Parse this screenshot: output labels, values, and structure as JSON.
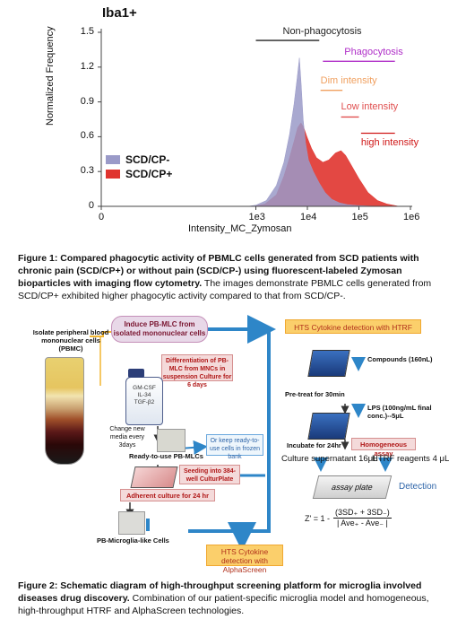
{
  "figure1": {
    "marker": "Iba1+",
    "chart_data": {
      "type": "area",
      "xlabel": "Intensity_MC_Zymosan",
      "ylabel": "Normalized Frequency",
      "x_scale": "log",
      "xlim": [
        1,
        1000000
      ],
      "ylim": [
        0,
        1.5
      ],
      "x_ticks": [
        "0",
        "1e3",
        "1e4",
        "1e5",
        "1e6"
      ],
      "y_ticks": [
        "0",
        "0.3",
        "0.6",
        "0.9",
        "1.2",
        "1.5"
      ],
      "legend_position": "left",
      "series": [
        {
          "name": "SCD/CP-",
          "color": "#9a9ac8",
          "x": [
            700,
            1000,
            1600,
            2500,
            3500,
            4500,
            5500,
            6300,
            7000,
            7600,
            8300,
            9200,
            10500,
            13000,
            17000,
            22000,
            30000,
            42000,
            60000,
            90000,
            140000,
            250000
          ],
          "y": [
            0.0,
            0.01,
            0.05,
            0.18,
            0.38,
            0.62,
            0.88,
            1.1,
            1.28,
            1.05,
            0.75,
            0.55,
            0.4,
            0.3,
            0.2,
            0.12,
            0.06,
            0.03,
            0.015,
            0.008,
            0.004,
            0.0
          ]
        },
        {
          "name": "SCD/CP+",
          "color": "#e0342f",
          "x": [
            900,
            1500,
            2500,
            3500,
            4500,
            5500,
            6500,
            7500,
            8500,
            9800,
            12000,
            15000,
            20000,
            26000,
            35000,
            45000,
            55000,
            70000,
            100000,
            150000,
            230000,
            350000,
            600000
          ],
          "y": [
            0.0,
            0.02,
            0.1,
            0.26,
            0.42,
            0.56,
            0.68,
            0.72,
            0.68,
            0.6,
            0.5,
            0.42,
            0.38,
            0.4,
            0.46,
            0.48,
            0.44,
            0.36,
            0.24,
            0.12,
            0.05,
            0.02,
            0.0
          ]
        }
      ],
      "annotations": [
        {
          "text": "Non-phagocytosis",
          "color": "#222222",
          "x_range": [
            1000,
            17000
          ],
          "y": 1.43
        },
        {
          "text": "Phagocytosis",
          "color": "#b030c8",
          "x_range": [
            20000,
            500000
          ],
          "y": 1.25
        },
        {
          "text": "Dim intensity",
          "color": "#f0a060",
          "x_range": [
            18000,
            48000
          ],
          "y": 1.0
        },
        {
          "text": "Low intensity",
          "color": "#e05050",
          "x_range": [
            45000,
            100000
          ],
          "y": 0.77
        },
        {
          "text": "high intensity",
          "color": "#d01818",
          "x_range": [
            110000,
            500000
          ],
          "y": 0.63
        }
      ]
    },
    "caption_bold": "Figure 1: Compared phagocytic activity of PBMLC cells generated from SCD patients with chronic pain (SCD/CP+) or without pain (SCD/CP-) using fluorescent-labeled Zymosan bioparticles with imaging flow cytometry.",
    "caption_normal": " The images demonstrate PBMLC cells generated from SCD/CP+ exhibited higher phagocytic activity compared to that from SCD/CP-."
  },
  "figure2": {
    "isolate_label": "Isolate peripheral blood mononuclear cells (PBMC)",
    "induce_box": "Induce PB-MLC from isolated mononuclear cells",
    "differentiation_box": "Differentiation of PB-MLC from MNCs in suspension Culture for 6 days",
    "flask_labels": [
      "GM-CSF",
      "IL-34",
      "TGF-β2"
    ],
    "change_media": "Change new media every 3days",
    "frozen_box": "Or keep ready-to-use cells in frozen bank",
    "ready_label": "Ready-to-use PB-MLCs",
    "seeding_box": "Seeding into 384-well CulturPlate",
    "adherent_box": "Adherent culture for 24 hr",
    "microglia_label": "PB-Microglia-like Cells",
    "alphascreen_box": "HTS Cytokine detection with AlphaScreen",
    "htrf_box": "HTS Cytokine detection with HTRF",
    "compounds": "Compounds (160nL)",
    "pretreat": "Pre-treat for 30min",
    "lps": "LPS (100ng/mL final conc.)--5μL",
    "incubate": "Incubate for 24hr",
    "homogeneous": "Homogeneous assay",
    "supernatant": "Culture supernatant 16μL",
    "htrf_reagents": "HTRF reagents 4 μL",
    "assay_plate": "assay plate",
    "detection": "Detection",
    "zprime": "Z' = 1 -",
    "z_numerator": "(3SD₊ + 3SD₋)",
    "z_denominator": "| Ave₊ - Ave₋ |",
    "caption_bold": "Figure 2: Schematic diagram of high-throughput screening platform for microglia involved diseases drug discovery.",
    "caption_normal": "  Combination of our patient-specific microglia model and homogeneous, high-throughput HTRF and AlphaScreen technologies."
  }
}
